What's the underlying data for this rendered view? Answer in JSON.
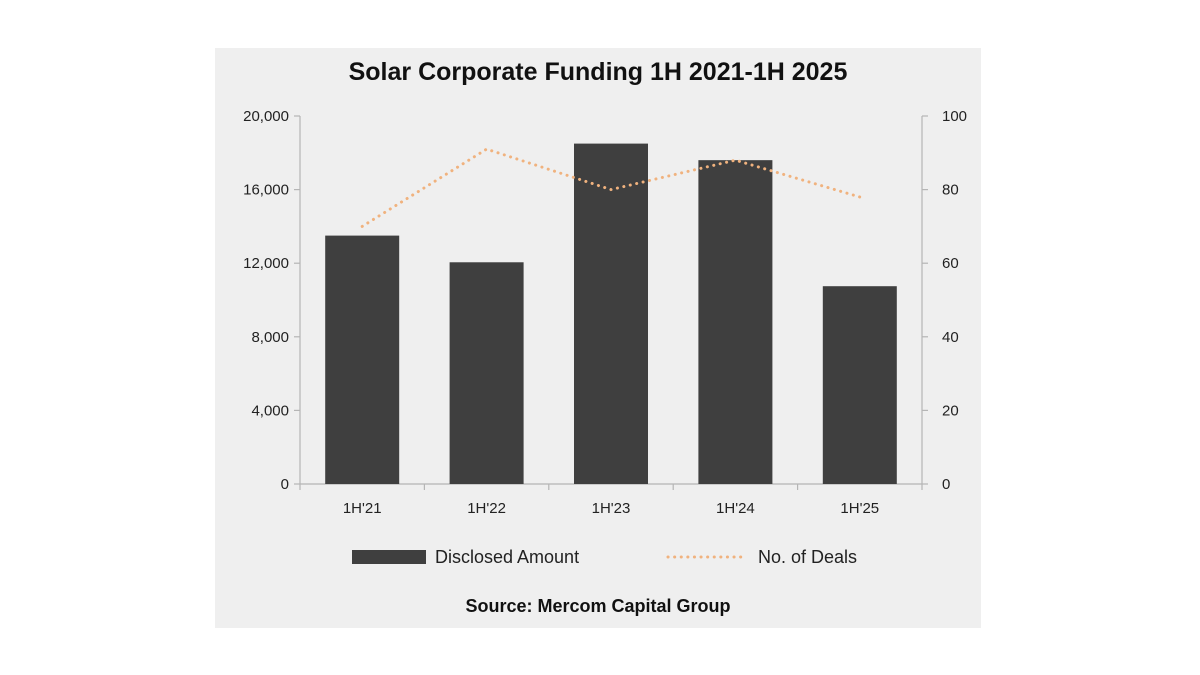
{
  "chart_data": {
    "type": "bar",
    "title": "Solar Corporate Funding 1H 2021-1H 2025",
    "categories": [
      "1H'21",
      "1H'22",
      "1H'23",
      "1H'24",
      "1H'25"
    ],
    "series": [
      {
        "name": "Disclosed Amount",
        "type": "bar",
        "axis": "left",
        "color": "#3f3f3f",
        "values": [
          13500,
          12050,
          18500,
          17600,
          10750
        ]
      },
      {
        "name": "No. of Deals",
        "type": "line",
        "style": "dotted",
        "axis": "right",
        "color": "#f0b27e",
        "values": [
          70,
          91,
          80,
          88,
          78
        ]
      }
    ],
    "y_left": {
      "ylim": [
        0,
        20000
      ],
      "ticks": [
        0,
        4000,
        8000,
        12000,
        16000,
        20000
      ],
      "tick_labels": [
        "0",
        "4,000",
        "8,000",
        "12,000",
        "16,000",
        "20,000"
      ]
    },
    "y_right": {
      "ylim": [
        0,
        100
      ],
      "ticks": [
        0,
        20,
        40,
        60,
        80,
        100
      ],
      "tick_labels": [
        "0",
        "20",
        "40",
        "60",
        "80",
        "100"
      ]
    },
    "grid": false,
    "legend_position": "bottom",
    "source": "Source: Mercom Capital Group"
  }
}
